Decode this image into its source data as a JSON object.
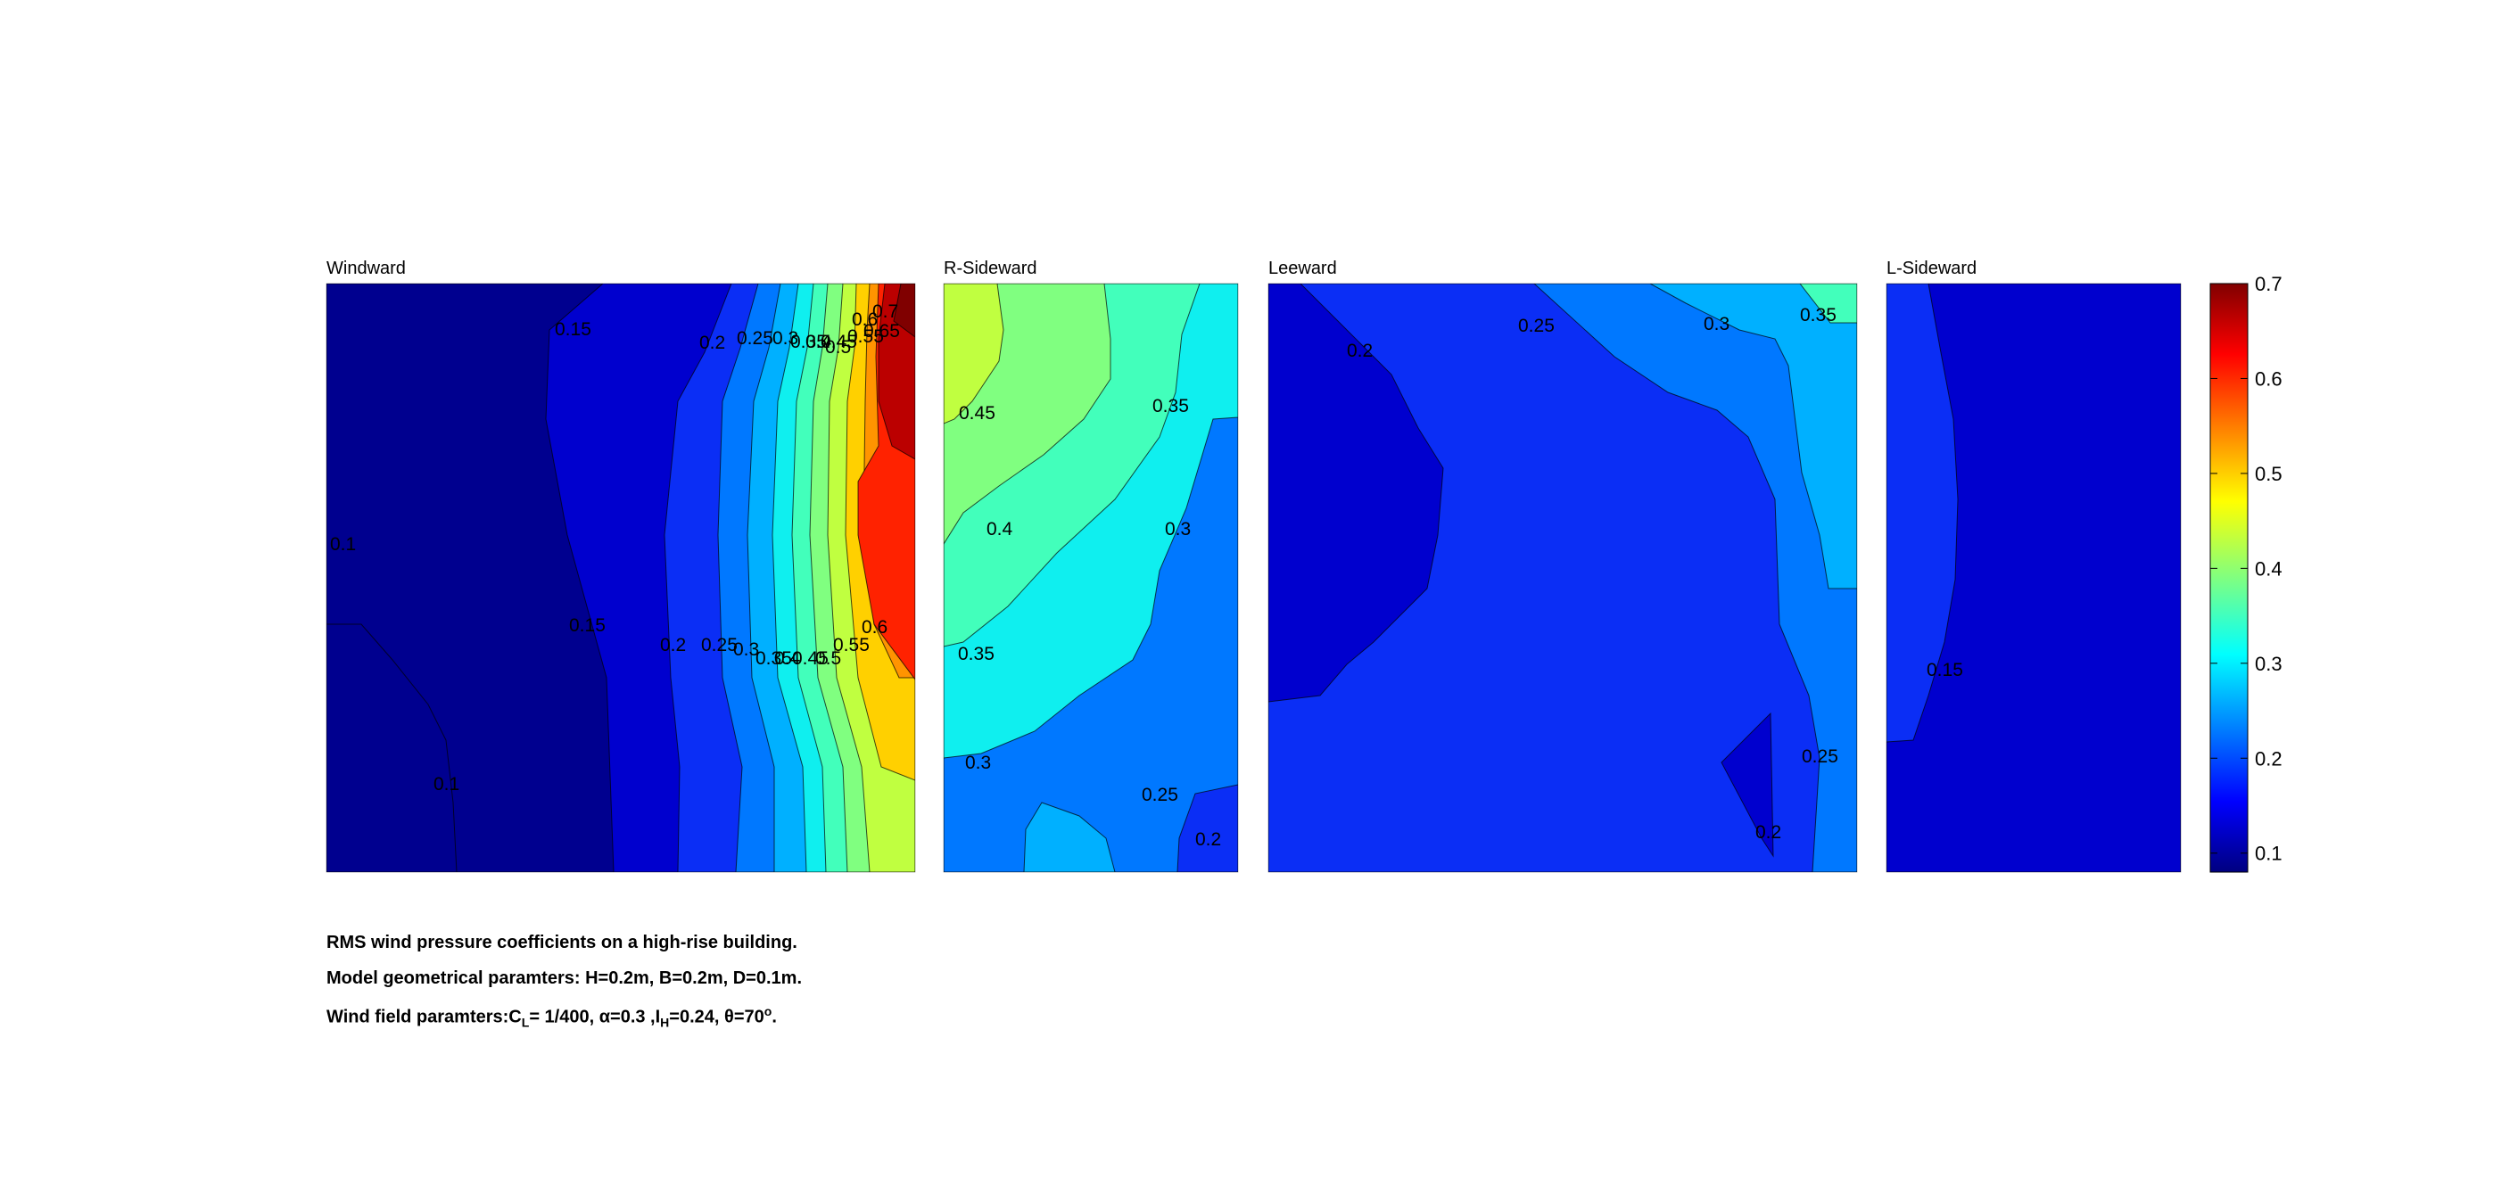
{
  "chart_data": {
    "type": "contour",
    "colormap": "jet",
    "clim": [
      0.08,
      0.7
    ],
    "colorbar": {
      "ticks": [
        0.1,
        0.2,
        0.3,
        0.4,
        0.5,
        0.6,
        0.7
      ],
      "labels": [
        "0.1",
        "0.2",
        "0.3",
        "0.4",
        "0.5",
        "0.6",
        "0.7"
      ]
    },
    "panels": [
      {
        "title": "Windward",
        "levels": [
          {
            "value": 0.1,
            "color": "#00008f"
          },
          {
            "value": 0.15,
            "color": "#0000ce"
          },
          {
            "value": 0.2,
            "color": "#0b2ef5"
          },
          {
            "value": 0.25,
            "color": "#0078ff"
          },
          {
            "value": 0.3,
            "color": "#00b0ff"
          },
          {
            "value": 0.35,
            "color": "#0fefef"
          },
          {
            "value": 0.4,
            "color": "#42ffbb"
          },
          {
            "value": 0.45,
            "color": "#80ff80"
          },
          {
            "value": 0.5,
            "color": "#c0ff40"
          },
          {
            "value": 0.55,
            "color": "#ffd000"
          },
          {
            "value": 0.6,
            "color": "#ff9400"
          },
          {
            "value": 0.65,
            "color": "#ff2200"
          },
          {
            "value": 0.7,
            "color": "#bb0000"
          }
        ],
        "labels": [
          "0.15",
          "0.2",
          "0.25",
          "0.3",
          "0.35",
          "0.4",
          "0.45",
          "0.5",
          "0.55",
          "0.6",
          "0.65",
          "0.7",
          "0.1",
          "0.15",
          "0.2",
          "0.25",
          "0.3",
          "0.35",
          "0.4",
          "0.45",
          "0.5",
          "0.55",
          "0.6",
          "0.1"
        ]
      },
      {
        "title": "R-Sideward",
        "labels": [
          "0.45",
          "0.4",
          "0.35",
          "0.35",
          "0.3",
          "0.3",
          "0.25",
          "0.2"
        ]
      },
      {
        "title": "Leeward",
        "labels": [
          "0.2",
          "0.25",
          "0.3",
          "0.35",
          "0.25",
          "0.2"
        ]
      },
      {
        "title": "L-Sideward",
        "labels": [
          "0.15"
        ]
      }
    ]
  },
  "caption": {
    "line1": "RMS wind pressure coefficients on a high-rise building.",
    "line2": "Model geometrical paramters: H=0.2m, B=0.2m, D=0.1m.",
    "line3": {
      "prefix": "Wind field paramters:C",
      "cl_sub": "L",
      "cl_val": "= 1/400, ",
      "alpha": "α=0.3 ,I",
      "ih_sub": "H",
      "ih_val": "=0.24, ",
      "theta": "θ=70",
      "theta_sup": "o",
      "end": "."
    }
  }
}
